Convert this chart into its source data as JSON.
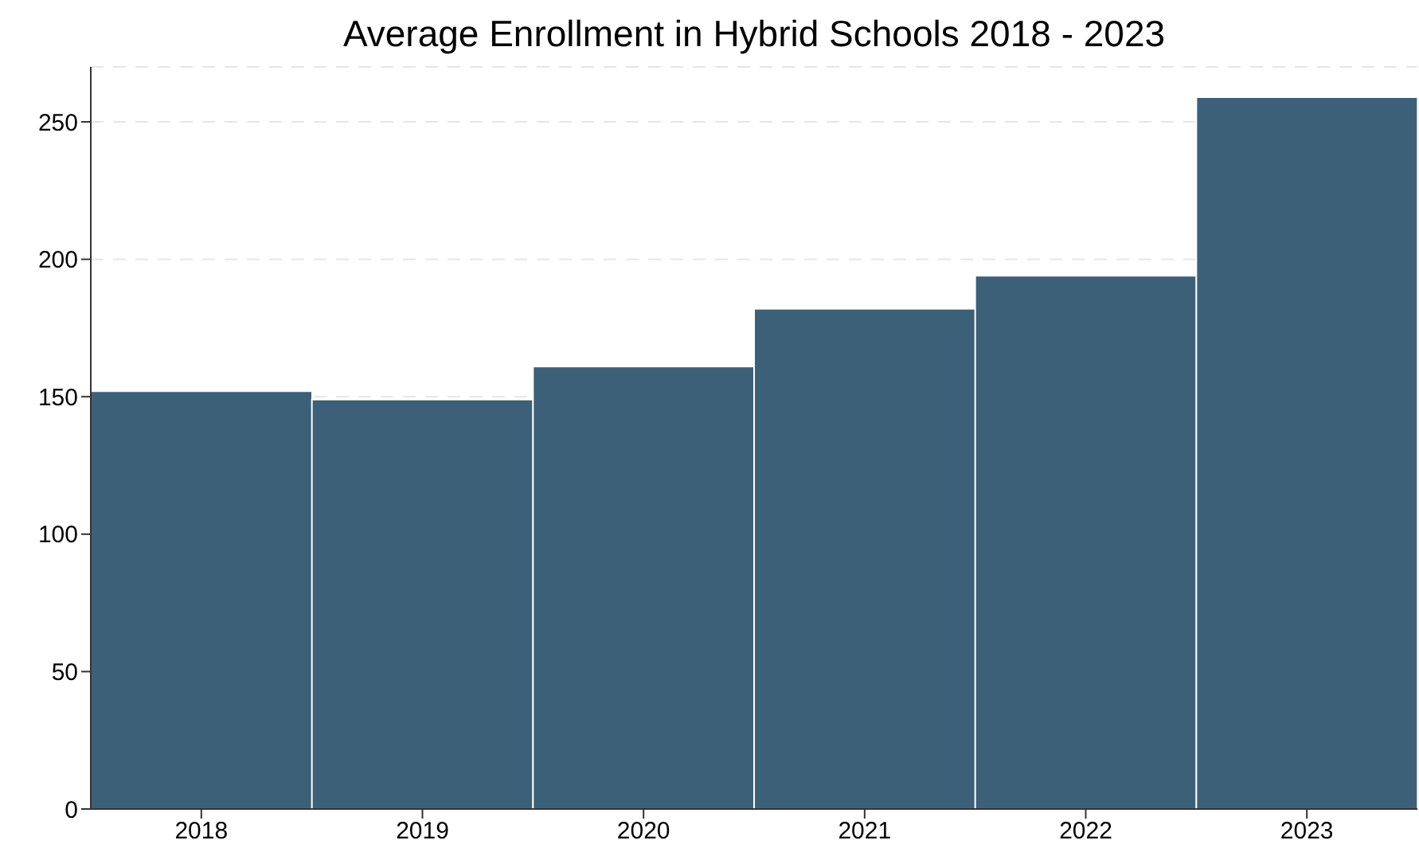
{
  "chart_data": {
    "type": "bar",
    "title": "Average Enrollment in Hybrid Schools 2018 - 2023",
    "categories": [
      "2018",
      "2019",
      "2020",
      "2021",
      "2022",
      "2023"
    ],
    "values": [
      152,
      149,
      161,
      182,
      194,
      259
    ],
    "color": "#3d6079",
    "ylim": [
      0,
      270
    ],
    "yticks": [
      0,
      50,
      100,
      150,
      200,
      250
    ],
    "grid": "y"
  }
}
